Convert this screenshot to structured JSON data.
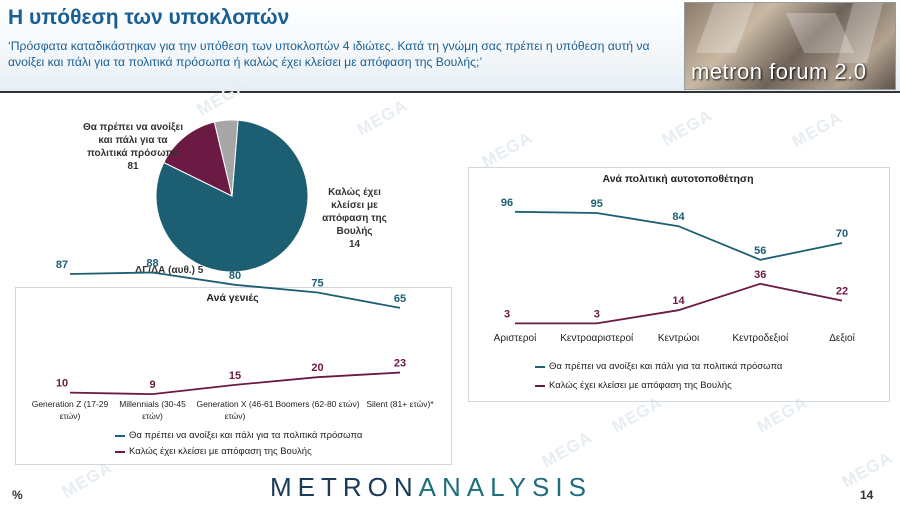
{
  "header": {
    "title": "Η υπόθεση των υποκλοπών",
    "question": "‘Πρόσφατα καταδικάστηκαν για την υπόθεση των υποκλοπών 4 ιδιώτες. Κατά τη γνώμη σας πρέπει η υπόθεση αυτή να ανοίξει και πάλι για τα πολιτικά πρόσωπα ή καλώς έχει κλείσει με απόφαση της Βουλής;’",
    "logo_text": "metron forum 2.0"
  },
  "watermark": "MEGA",
  "footer": {
    "brand_a": "METRON",
    "brand_b": "ANALYSIS",
    "unit": "%",
    "page": "14"
  },
  "colors": {
    "teal": "#1c5f73",
    "maroon": "#6b1a44",
    "grey": "#a6a6a6"
  },
  "chart_data": [
    {
      "type": "pie",
      "labels": [
        "Θα πρέπει να ανοίξει και πάλι για τα πολιτικά πρόσωπα",
        "Καλώς έχει κλείσει με απόφαση της Βουλής",
        "ΔΓ/ΔΑ (αυθ.)"
      ],
      "values": [
        81,
        14,
        5
      ],
      "colors": [
        "#1c5f73",
        "#6b1a44",
        "#a6a6a6"
      ]
    },
    {
      "type": "line",
      "title": "Ανά γενιές",
      "categories": [
        "Generation Z (17-29 ετών)",
        "Millennials (30-45 ετών)",
        "Generation X (46-61 ετών)",
        "Boomers (62-80 ετών)",
        "Silent (81+ ετών)*"
      ],
      "series": [
        {
          "name": "Θα πρέπει να ανοίξει και πάλι για τα πολιτικά πρόσωπα",
          "values": [
            87,
            88,
            80,
            75,
            65
          ],
          "color": "#1c5f73"
        },
        {
          "name": "Καλώς έχει κλείσει με απόφαση της Βουλής",
          "values": [
            10,
            9,
            15,
            20,
            23
          ],
          "color": "#6b1a44"
        }
      ],
      "ylim": [
        0,
        100
      ],
      "grid": false,
      "legend": "bottom"
    },
    {
      "type": "line",
      "title": "Ανά πολιτική αυτοτοποθέτηση",
      "categories": [
        "Αριστεροί",
        "Κεντροαριστεροί",
        "Κεντρώοι",
        "Κεντροδεξιοί",
        "Δεξιοί"
      ],
      "series": [
        {
          "name": "Θα πρέπει να ανοίξει και πάλι για τα πολιτικά πρόσωπα",
          "values": [
            96,
            95,
            84,
            56,
            70
          ],
          "color": "#1c5f73"
        },
        {
          "name": "Καλώς έχει κλείσει με απόφαση της Βουλής",
          "values": [
            3,
            3,
            14,
            36,
            22
          ],
          "color": "#6b1a44"
        }
      ],
      "ylim": [
        0,
        100
      ],
      "grid": false,
      "legend": "bottom"
    }
  ]
}
